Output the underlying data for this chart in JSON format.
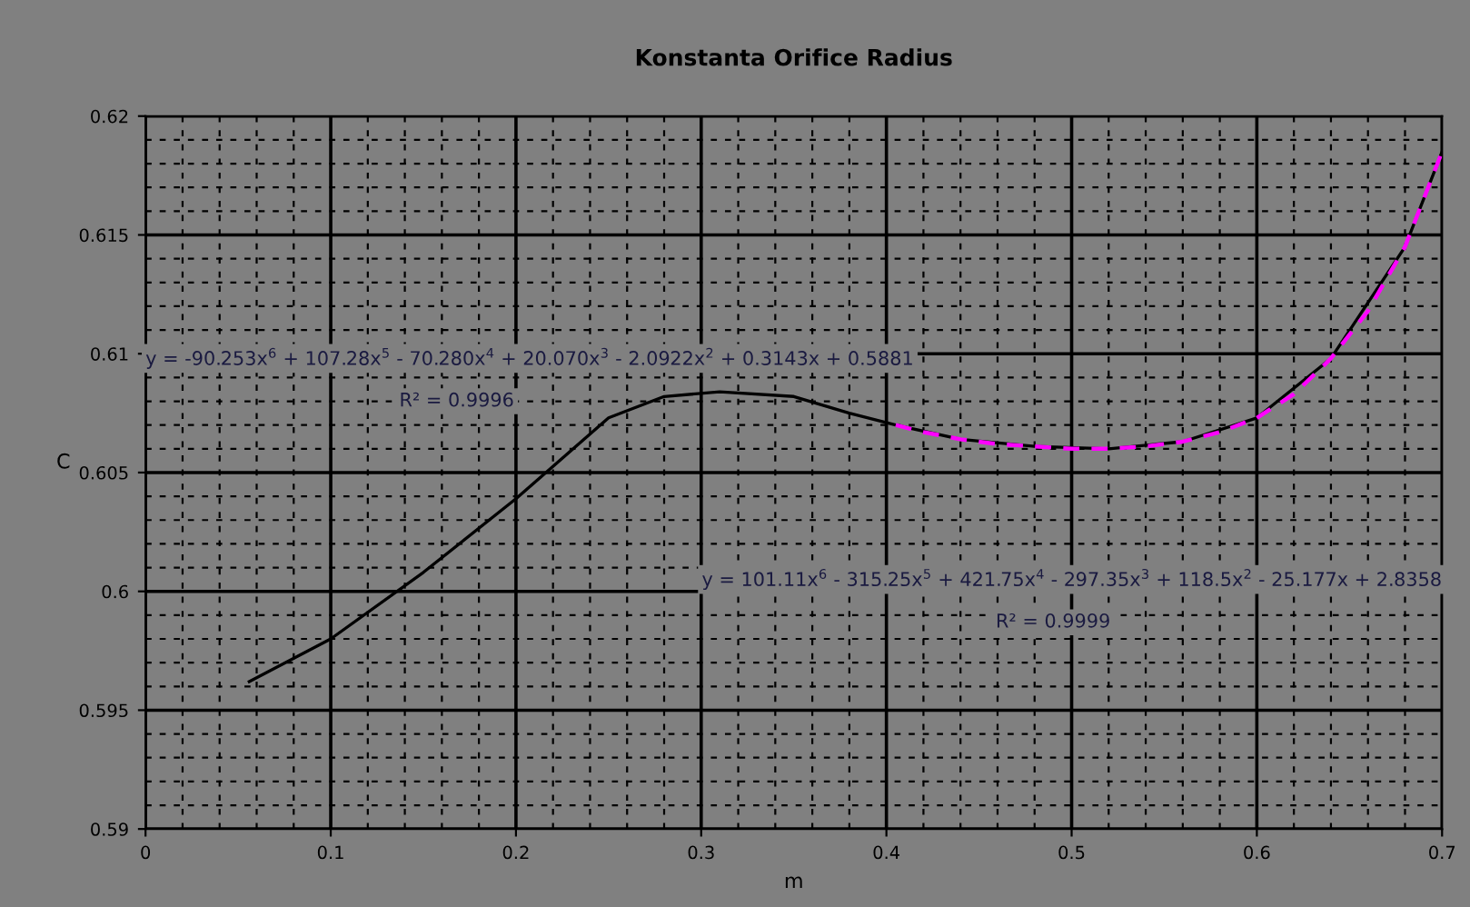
{
  "chart_data": {
    "type": "line",
    "title": "Konstanta Orifice Radius",
    "xlabel": "m",
    "ylabel": "C",
    "xlim": [
      0,
      0.7
    ],
    "ylim": [
      0.59,
      0.62
    ],
    "xticks": [
      {
        "value": 0,
        "label": "0"
      },
      0.1,
      0.2,
      0.3,
      0.4,
      0.5,
      0.6,
      0.7
    ],
    "yticks": [
      0.59,
      0.595,
      0.6,
      0.605,
      0.61,
      0.615,
      0.62
    ],
    "grid": true,
    "legend": false,
    "series": [
      {
        "color": "#000000",
        "line_style": "solid",
        "marker": "none",
        "x": [
          0.056,
          0.1,
          0.15,
          0.2,
          0.25,
          0.28,
          0.31,
          0.35,
          0.38,
          0.405,
          0.44,
          0.48,
          0.52,
          0.56,
          0.6,
          0.64,
          0.68,
          0.7
        ],
        "values": [
          0.5962,
          0.598,
          0.6008,
          0.6039,
          0.6073,
          0.6082,
          0.6084,
          0.6082,
          0.6075,
          0.607,
          0.6064,
          0.6061,
          0.606,
          0.6063,
          0.6073,
          0.6098,
          0.6145,
          0.6185
        ]
      },
      {
        "color": "#ff00ff",
        "line_style": "dashed",
        "marker": "none",
        "x": [
          0.405,
          0.42,
          0.44,
          0.46,
          0.48,
          0.5,
          0.52,
          0.54,
          0.56,
          0.58,
          0.6,
          0.62,
          0.64,
          0.66,
          0.68,
          0.7
        ],
        "values": [
          0.607,
          0.6067,
          0.6064,
          0.6062,
          0.6061,
          0.606,
          0.606,
          0.6061,
          0.6063,
          0.6067,
          0.6073,
          0.6083,
          0.6098,
          0.6118,
          0.6145,
          0.6185
        ]
      }
    ],
    "annotations": [
      "y = -90.253x$^{6}$ + 107.28x$^{5}$ - 70.280x$^{4}$ + 20.070x$^{3}$ - 2.0922x$^{2}$ + 0.3143x + 0.5881",
      "R² = 0.9996",
      "y = 101.11x$^{6}$ - 315.25x$^{5}$ + 421.75x$^{4}$ - 297.35x$^{3}$ + 118.5x$^{2}$ - 25.177x + 2.8358",
      "R² = 0.9999"
    ]
  }
}
